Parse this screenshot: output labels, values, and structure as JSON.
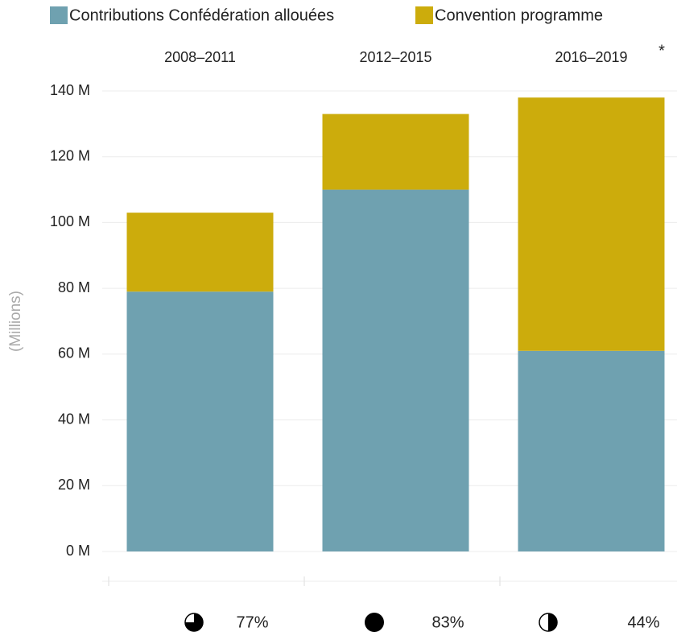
{
  "chart_data": {
    "type": "stacked_bar",
    "categories": [
      "2008–2011",
      "2012–2015",
      "2016–2019"
    ],
    "series": [
      {
        "name": "Contributions Confédération allouées",
        "color": "#6fa1b0",
        "values": [
          79,
          110,
          61
        ]
      },
      {
        "name": "Convention programme",
        "color": "#ccac0c",
        "values": [
          24,
          23,
          77
        ]
      }
    ],
    "ylabel": "(Millions)",
    "annotation": "*",
    "ylim": [
      0,
      140
    ],
    "yticks": [
      {
        "value": 0,
        "label": "0 M"
      },
      {
        "value": 20,
        "label": "20 M"
      },
      {
        "value": 40,
        "label": "40 M"
      },
      {
        "value": 60,
        "label": "60 M"
      },
      {
        "value": 80,
        "label": "80 M"
      },
      {
        "value": 100,
        "label": "100 M"
      },
      {
        "value": 120,
        "label": "120 M"
      },
      {
        "value": 140,
        "label": "140 M"
      }
    ],
    "grid": true,
    "indicator": {
      "values": [
        77,
        83,
        44
      ],
      "value_labels": [
        "77%",
        "83%",
        "44%"
      ]
    }
  }
}
